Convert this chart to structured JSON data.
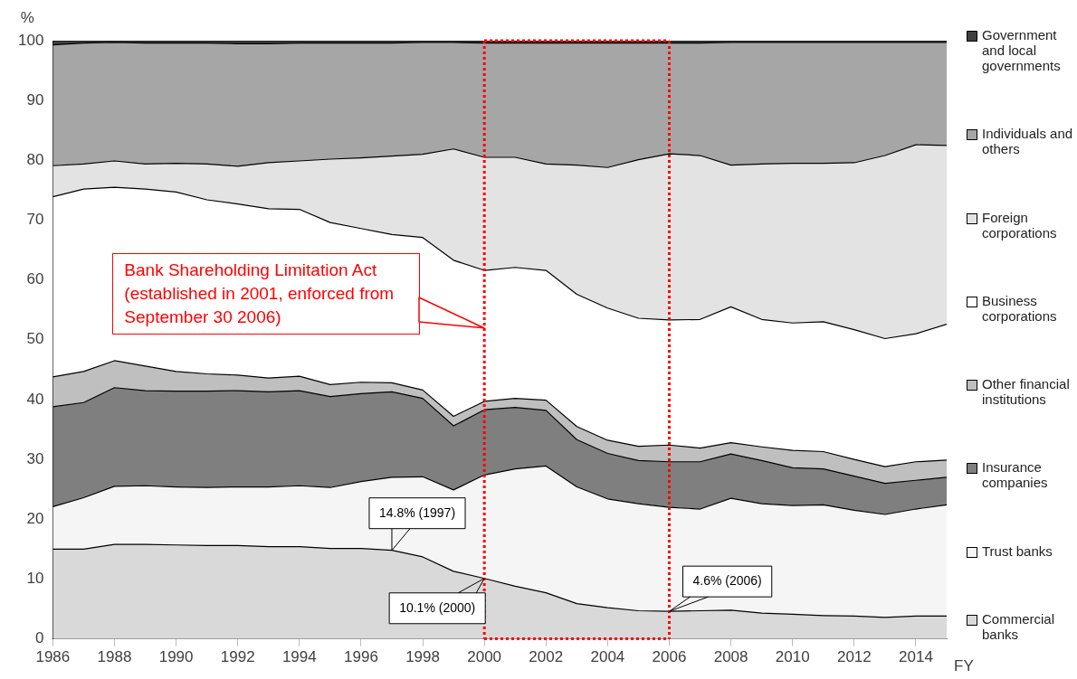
{
  "chart_data": {
    "type": "area",
    "stacked": true,
    "xlabel": "FY",
    "ylabel": "%",
    "x": [
      1986,
      1987,
      1988,
      1989,
      1990,
      1991,
      1992,
      1993,
      1994,
      1995,
      1996,
      1997,
      1998,
      1999,
      2000,
      2001,
      2002,
      2003,
      2004,
      2005,
      2006,
      2007,
      2008,
      2009,
      2010,
      2011,
      2012,
      2013,
      2014,
      2015
    ],
    "xlim": [
      1986,
      2015
    ],
    "xticks": [
      1986,
      1988,
      1990,
      1992,
      1994,
      1996,
      1998,
      2000,
      2002,
      2004,
      2006,
      2008,
      2010,
      2012,
      2014
    ],
    "ylim": [
      0,
      100
    ],
    "yticks": [
      0,
      10,
      20,
      30,
      40,
      50,
      60,
      70,
      80,
      90,
      100
    ],
    "legend": "right",
    "marker": "none",
    "series": [
      {
        "name": "Commercial banks",
        "color": "#d9d9d9",
        "values": [
          15.0,
          15.0,
          15.8,
          15.8,
          15.7,
          15.6,
          15.6,
          15.4,
          15.4,
          15.1,
          15.1,
          14.8,
          13.7,
          11.3,
          10.1,
          8.8,
          7.7,
          5.9,
          5.2,
          4.7,
          4.6,
          4.7,
          4.8,
          4.3,
          4.1,
          3.9,
          3.8,
          3.6,
          3.8,
          3.8
        ]
      },
      {
        "name": "Trust banks",
        "color": "#f5f5f5",
        "values": [
          7.1,
          8.6,
          9.7,
          9.8,
          9.7,
          9.7,
          9.8,
          10.0,
          10.2,
          10.2,
          11.2,
          12.2,
          13.4,
          13.6,
          17.3,
          19.6,
          21.2,
          19.5,
          18.2,
          17.9,
          17.4,
          17.0,
          18.7,
          18.3,
          18.2,
          18.5,
          17.7,
          17.2,
          17.9,
          18.6
        ]
      },
      {
        "name": "Insurance companies",
        "color": "#7f7f7f",
        "values": [
          16.7,
          15.9,
          16.5,
          15.9,
          16.0,
          16.1,
          16.1,
          15.9,
          15.9,
          15.2,
          14.7,
          14.3,
          13.1,
          10.7,
          10.9,
          10.3,
          9.3,
          7.9,
          7.6,
          7.2,
          7.6,
          7.9,
          7.4,
          7.2,
          6.3,
          6.0,
          5.7,
          5.2,
          4.8,
          4.6
        ]
      },
      {
        "name": "Other financial institutions",
        "color": "#bfbfbf",
        "values": [
          5.0,
          5.2,
          4.5,
          4.1,
          3.3,
          2.9,
          2.6,
          2.3,
          2.4,
          2.0,
          1.9,
          1.5,
          1.4,
          1.6,
          1.4,
          1.5,
          1.7,
          2.2,
          2.2,
          2.4,
          2.8,
          2.3,
          1.9,
          2.3,
          2.9,
          2.9,
          2.8,
          2.8,
          3.1,
          2.9
        ]
      },
      {
        "name": "Business corporations",
        "color": "#ffffff",
        "values": [
          30.1,
          30.5,
          29.0,
          29.6,
          30.0,
          29.1,
          28.6,
          28.3,
          27.9,
          27.1,
          25.7,
          24.8,
          25.5,
          26.1,
          21.9,
          21.9,
          21.7,
          22.1,
          22.1,
          21.4,
          20.9,
          21.5,
          22.7,
          21.3,
          21.3,
          21.7,
          21.7,
          21.4,
          21.4,
          22.7
        ]
      },
      {
        "name": "Foreign corporations",
        "color": "#e3e3e3",
        "values": [
          5.2,
          4.2,
          4.4,
          4.2,
          4.8,
          6.0,
          6.3,
          7.7,
          8.1,
          10.6,
          11.8,
          13.1,
          13.9,
          18.6,
          18.9,
          18.4,
          17.8,
          21.6,
          23.5,
          26.5,
          27.8,
          27.4,
          23.7,
          26.0,
          26.7,
          26.5,
          27.9,
          30.6,
          31.6,
          29.9
        ]
      },
      {
        "name": "Individuals and others",
        "color": "#a6a6a6",
        "values": [
          20.2,
          20.2,
          19.8,
          20.2,
          20.1,
          20.2,
          20.5,
          19.9,
          19.7,
          19.4,
          19.2,
          18.9,
          18.7,
          17.8,
          19.1,
          19.1,
          20.2,
          20.4,
          20.8,
          19.5,
          18.5,
          18.8,
          20.5,
          20.3,
          20.2,
          20.2,
          20.1,
          18.9,
          17.1,
          17.2
        ]
      },
      {
        "name": "Government and local governments",
        "color": "#404040",
        "values": [
          0.7,
          0.4,
          0.3,
          0.4,
          0.4,
          0.4,
          0.5,
          0.5,
          0.4,
          0.4,
          0.4,
          0.4,
          0.3,
          0.3,
          0.4,
          0.4,
          0.4,
          0.4,
          0.4,
          0.4,
          0.4,
          0.4,
          0.3,
          0.3,
          0.3,
          0.3,
          0.3,
          0.3,
          0.3,
          0.3
        ]
      }
    ],
    "ref_lines": [
      {
        "axis": "x",
        "value": 2000,
        "color": "#ff0000",
        "line_style": "dotted"
      },
      {
        "axis": "x",
        "value": 2006,
        "color": "#ff0000",
        "line_style": "dotted"
      }
    ],
    "annotations": [
      {
        "text": "14.8% (1997)",
        "x": 1997,
        "y": 14.8
      },
      {
        "text": "10.1% (2000)",
        "x": 2000,
        "y": 10.1
      },
      {
        "text": "4.6% (2006)",
        "x": 2006,
        "y": 4.6
      },
      "Bank Shareholding Limitation Act (established in 2001, enforced from September 30 2006)"
    ]
  }
}
